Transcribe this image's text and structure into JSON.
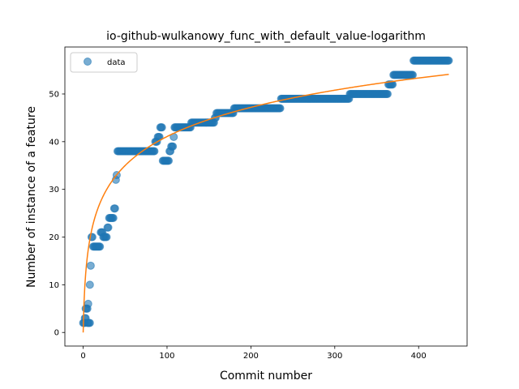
{
  "chart_data": {
    "type": "scatter",
    "title": "io-github-wulkanowy_func_with_default_value-logarithm",
    "xlabel": "Commit number",
    "ylabel": "Number of instance of a feature",
    "xlim": [
      -21.8,
      457.8
    ],
    "ylim": [
      -2.85,
      59.85
    ],
    "xticks": [
      0,
      100,
      200,
      300,
      400
    ],
    "yticks": [
      0,
      10,
      20,
      30,
      40,
      50
    ],
    "grid": false,
    "legend": {
      "placement": "top-left",
      "entries": [
        "data"
      ]
    },
    "colors": {
      "data": "#1f77b4",
      "fit": "#ff7f0e"
    },
    "series": [
      {
        "name": "data",
        "style": "markers",
        "segments": [
          [
            0,
            2,
            2
          ],
          [
            2,
            3,
            3
          ],
          [
            3,
            5,
            5
          ],
          [
            5,
            6,
            2
          ],
          [
            6,
            6,
            6
          ],
          [
            7,
            8,
            2
          ],
          [
            8,
            8,
            10
          ],
          [
            9,
            9,
            14
          ],
          [
            10,
            11,
            20
          ],
          [
            12,
            20,
            18
          ],
          [
            21,
            23,
            21
          ],
          [
            24,
            28,
            20
          ],
          [
            29,
            30,
            22
          ],
          [
            31,
            36,
            24
          ],
          [
            37,
            38,
            26
          ],
          [
            39,
            39,
            32
          ],
          [
            40,
            40,
            33
          ],
          [
            41,
            85,
            38
          ],
          [
            86,
            88,
            40
          ],
          [
            89,
            91,
            41
          ],
          [
            92,
            94,
            43
          ],
          [
            95,
            102,
            36
          ],
          [
            103,
            104,
            38
          ],
          [
            105,
            107,
            39
          ],
          [
            108,
            108,
            41
          ],
          [
            109,
            128,
            43
          ],
          [
            129,
            156,
            44
          ],
          [
            157,
            158,
            45
          ],
          [
            159,
            179,
            46
          ],
          [
            180,
            235,
            47
          ],
          [
            236,
            317,
            49
          ],
          [
            318,
            363,
            50
          ],
          [
            364,
            369,
            52
          ],
          [
            370,
            393,
            54
          ],
          [
            394,
            436,
            57
          ]
        ]
      },
      {
        "name": "",
        "style": "line",
        "model": "logarithmic",
        "a": 8.9,
        "b": 0.0,
        "x_range": [
          0,
          436
        ]
      }
    ]
  }
}
